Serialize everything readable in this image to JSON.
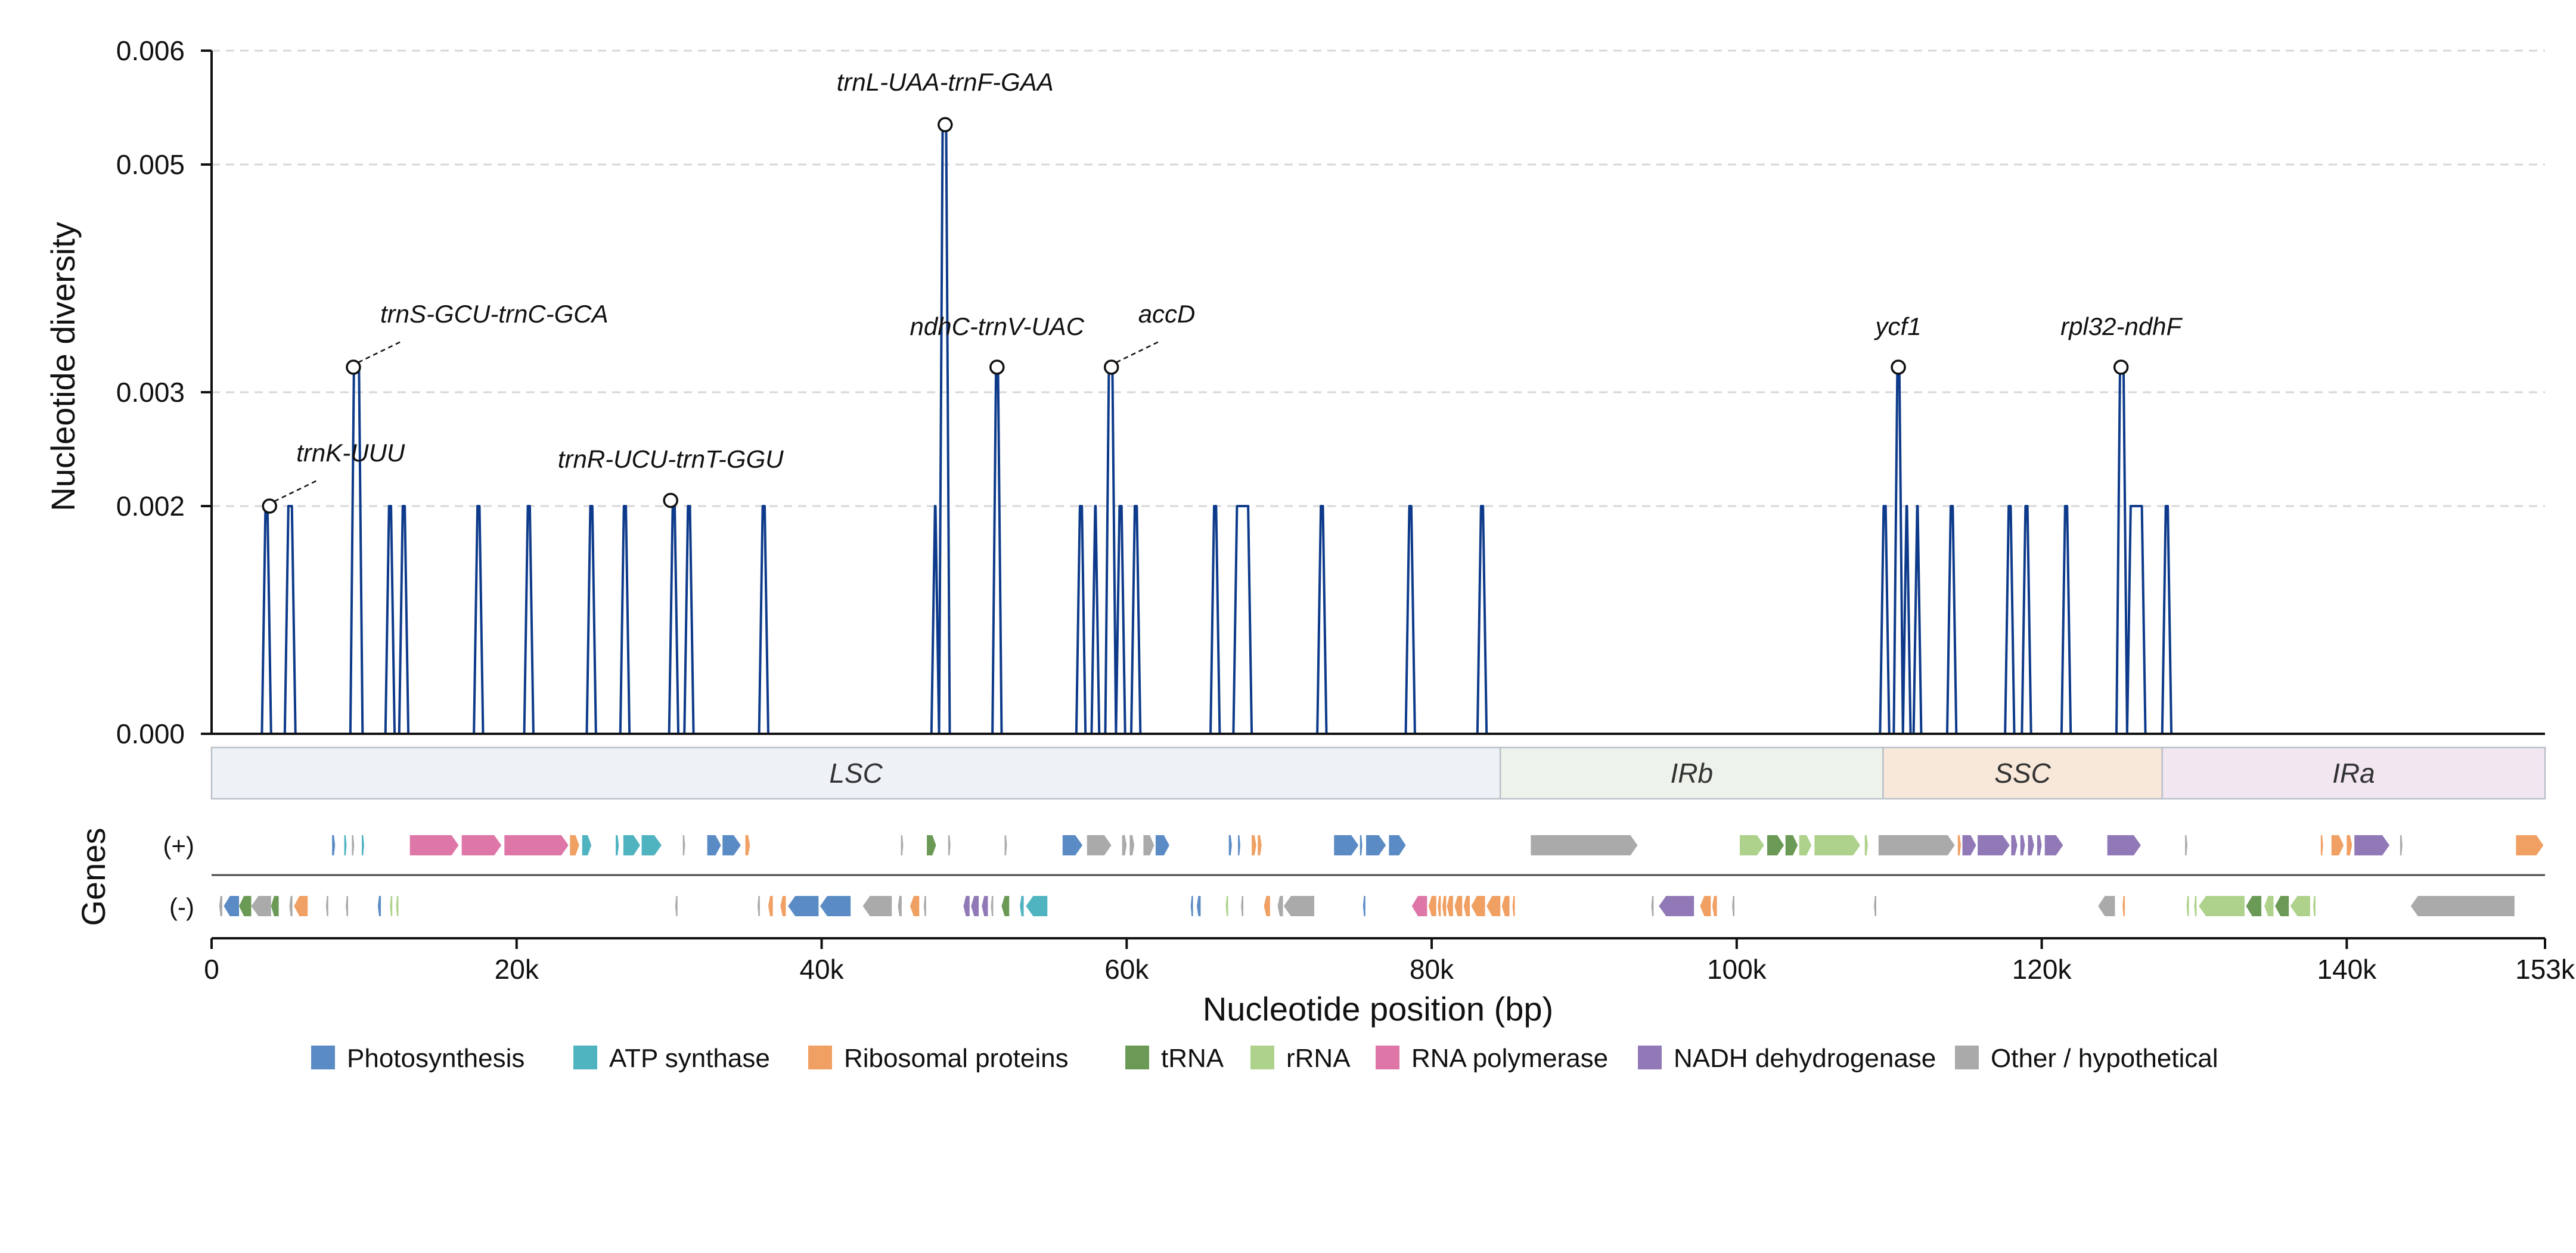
{
  "chart_data": {
    "type": "line",
    "ylabel": "Nucleotide diversity",
    "xlabel": "Nucleotide position (bp)",
    "ylim": [
      0,
      0.006
    ],
    "xlim": [
      0,
      153000
    ],
    "y_ticks": [
      0.0,
      0.002,
      0.003,
      0.005,
      0.006
    ],
    "y_tick_labels": [
      "0.000",
      "0.002",
      "0.003",
      "0.005",
      "0.006"
    ],
    "x_ticks": [
      0,
      20000,
      40000,
      60000,
      80000,
      100000,
      120000,
      140000,
      153000
    ],
    "x_tick_labels": [
      "0",
      "20k",
      "40k",
      "60k",
      "80k",
      "100k",
      "120k",
      "140k",
      "153k"
    ],
    "grid": "horizontal dashed",
    "line_color": "#0d3a8a",
    "pi_levels": [
      0,
      0.002,
      0.003,
      0.0053
    ],
    "peak_windows": [
      [
        3300,
        3900,
        0.002
      ],
      [
        4800,
        5500,
        0.002
      ],
      [
        9100,
        9900,
        0.00322
      ],
      [
        11400,
        12000,
        0.002
      ],
      [
        12300,
        12900,
        0.002
      ],
      [
        17200,
        17800,
        0.002
      ],
      [
        20500,
        21100,
        0.002
      ],
      [
        24600,
        25200,
        0.002
      ],
      [
        26800,
        27400,
        0.002
      ],
      [
        30000,
        30600,
        0.002
      ],
      [
        31000,
        31600,
        0.002
      ],
      [
        35900,
        36500,
        0.002
      ],
      [
        47200,
        47700,
        0.002
      ],
      [
        47700,
        48400,
        0.00535
      ],
      [
        51200,
        51800,
        0.00322
      ],
      [
        56700,
        57300,
        0.002
      ],
      [
        57700,
        58200,
        0.002
      ],
      [
        58600,
        59300,
        0.00322
      ],
      [
        59300,
        59900,
        0.002
      ],
      [
        60300,
        60900,
        0.002
      ],
      [
        65500,
        66100,
        0.002
      ],
      [
        67000,
        68200,
        0.002
      ],
      [
        72500,
        73100,
        0.002
      ],
      [
        78300,
        78900,
        0.002
      ],
      [
        83000,
        83600,
        0.002
      ],
      [
        109400,
        110000,
        0.002
      ],
      [
        110300,
        110900,
        0.00322
      ],
      [
        110900,
        111400,
        0.002
      ],
      [
        111600,
        112100,
        0.002
      ],
      [
        113800,
        114400,
        0.002
      ],
      [
        117600,
        118200,
        0.002
      ],
      [
        118700,
        119300,
        0.002
      ],
      [
        121300,
        121900,
        0.002
      ],
      [
        124900,
        125600,
        0.00322
      ],
      [
        125600,
        126800,
        0.002
      ],
      [
        127900,
        128500,
        0.002
      ]
    ],
    "annotations": [
      {
        "label": "trnK-UUU",
        "x": 3800,
        "y": 0.002
      },
      {
        "label": "trnS-GCU-trnC-GCA",
        "x": 9300,
        "y": 0.00322
      },
      {
        "label": "trnR-UCU-trnT-GGU",
        "x": 30100,
        "y": 0.00205
      },
      {
        "label": "trnL-UAA-trnF-GAA",
        "x": 48100,
        "y": 0.00535
      },
      {
        "label": "ndhC-trnV-UAC",
        "x": 51500,
        "y": 0.00322
      },
      {
        "label": "accD",
        "x": 59000,
        "y": 0.00322
      },
      {
        "label": "ycf1",
        "x": 110600,
        "y": 0.00322
      },
      {
        "label": "rpl32-ndhF",
        "x": 125200,
        "y": 0.00322
      }
    ],
    "regions": [
      {
        "label": "LSC",
        "start": 0,
        "end": 84500,
        "color": "#eef2f6"
      },
      {
        "label": "IRb",
        "start": 84500,
        "end": 109600,
        "color": "#edf3eb"
      },
      {
        "label": "SSC",
        "start": 109600,
        "end": 127900,
        "color": "#f8e8da"
      },
      {
        "label": "IRa",
        "start": 127900,
        "end": 153000,
        "color": "#f2e6f1"
      }
    ],
    "genes_ylabel": "Genes",
    "strand_labels": [
      "(+)",
      "(-)"
    ],
    "categories": {
      "P": {
        "name": "Photosynthesis",
        "color": "#5b8bc4"
      },
      "A": {
        "name": "ATP synthase",
        "color": "#4fb3c0"
      },
      "R": {
        "name": "Ribosomal proteins",
        "color": "#f0a063"
      },
      "T": {
        "name": "tRNA",
        "color": "#6a9a55"
      },
      "r": {
        "name": "rRNA",
        "color": "#aed28b"
      },
      "N": {
        "name": "RNA polymerase",
        "color": "#de77a8"
      },
      "D": {
        "name": "NADH dehydrogenase",
        "color": "#9079b6"
      },
      "O": {
        "name": "Other / hypothetical",
        "color": "#aaaaaa"
      }
    },
    "legend_order": [
      "P",
      "A",
      "R",
      "T",
      "r",
      "N",
      "D",
      "O"
    ],
    "genes_plus": [
      [
        7900,
        8100,
        "P"
      ],
      [
        8700,
        8850,
        "A"
      ],
      [
        9200,
        9350,
        "O"
      ],
      [
        9850,
        10000,
        "A"
      ],
      [
        13000,
        16200,
        "N"
      ],
      [
        16400,
        19000,
        "N"
      ],
      [
        19200,
        23400,
        "N"
      ],
      [
        23500,
        24100,
        "R"
      ],
      [
        24300,
        24900,
        "A"
      ],
      [
        26500,
        26700,
        "A"
      ],
      [
        27000,
        28100,
        "A"
      ],
      [
        28200,
        29500,
        "A"
      ],
      [
        30900,
        31050,
        "O"
      ],
      [
        32500,
        33400,
        "P"
      ],
      [
        33500,
        34700,
        "P"
      ],
      [
        35000,
        35300,
        "R"
      ],
      [
        45200,
        45350,
        "O"
      ],
      [
        46900,
        47500,
        "T"
      ],
      [
        48300,
        48450,
        "O"
      ],
      [
        52000,
        52150,
        "O"
      ],
      [
        55800,
        57100,
        "P"
      ],
      [
        57400,
        59000,
        "O"
      ],
      [
        59700,
        60000,
        "O"
      ],
      [
        60200,
        60500,
        "O"
      ],
      [
        61100,
        61800,
        "O"
      ],
      [
        61900,
        62800,
        "P"
      ],
      [
        66700,
        66900,
        "P"
      ],
      [
        67300,
        67450,
        "P"
      ],
      [
        68200,
        68500,
        "R"
      ],
      [
        68600,
        68850,
        "R"
      ],
      [
        73600,
        75200,
        "P"
      ],
      [
        75300,
        75450,
        "P"
      ],
      [
        75700,
        77000,
        "P"
      ],
      [
        77200,
        78300,
        "P"
      ],
      [
        86500,
        93500,
        "O"
      ],
      [
        100200,
        101800,
        "r"
      ],
      [
        102000,
        103100,
        "T"
      ],
      [
        103200,
        104000,
        "T"
      ],
      [
        104100,
        104900,
        "r"
      ],
      [
        105100,
        108100,
        "r"
      ],
      [
        108400,
        108600,
        "r"
      ],
      [
        109300,
        114300,
        "O"
      ],
      [
        114500,
        114700,
        "R"
      ],
      [
        114800,
        115700,
        "D"
      ],
      [
        115800,
        117900,
        "D"
      ],
      [
        118000,
        118400,
        "D"
      ],
      [
        118600,
        118900,
        "D"
      ],
      [
        119100,
        119500,
        "D"
      ],
      [
        119700,
        120000,
        "D"
      ],
      [
        120200,
        121400,
        "D"
      ],
      [
        124300,
        126500,
        "D"
      ],
      [
        129400,
        129550,
        "O"
      ],
      [
        138300,
        138450,
        "R"
      ],
      [
        139000,
        139800,
        "R"
      ],
      [
        140000,
        140350,
        "R"
      ],
      [
        140500,
        142800,
        "D"
      ],
      [
        143500,
        143650,
        "O"
      ],
      [
        151100,
        152900,
        "R"
      ]
    ],
    "genes_minus": [
      [
        500,
        700,
        "O"
      ],
      [
        800,
        1800,
        "P"
      ],
      [
        1800,
        2600,
        "T"
      ],
      [
        2600,
        3900,
        "O"
      ],
      [
        3900,
        4400,
        "T"
      ],
      [
        5100,
        5300,
        "O"
      ],
      [
        5400,
        6300,
        "R"
      ],
      [
        7500,
        7650,
        "O"
      ],
      [
        8800,
        8950,
        "O"
      ],
      [
        10900,
        11100,
        "P"
      ],
      [
        11700,
        11850,
        "r"
      ],
      [
        12100,
        12250,
        "r"
      ],
      [
        30400,
        30550,
        "O"
      ],
      [
        35800,
        35950,
        "O"
      ],
      [
        36500,
        36800,
        "R"
      ],
      [
        37300,
        37650,
        "R"
      ],
      [
        37800,
        39800,
        "P"
      ],
      [
        39900,
        41900,
        "P"
      ],
      [
        42700,
        44600,
        "O"
      ],
      [
        45000,
        45250,
        "O"
      ],
      [
        45800,
        46400,
        "R"
      ],
      [
        46700,
        46850,
        "O"
      ],
      [
        49300,
        49700,
        "D"
      ],
      [
        49800,
        50300,
        "D"
      ],
      [
        50500,
        50900,
        "D"
      ],
      [
        51100,
        51250,
        "O"
      ],
      [
        51800,
        52300,
        "T"
      ],
      [
        53000,
        53250,
        "A"
      ],
      [
        53400,
        54800,
        "A"
      ],
      [
        64200,
        64350,
        "P"
      ],
      [
        64600,
        64850,
        "P"
      ],
      [
        66500,
        66650,
        "r"
      ],
      [
        67500,
        67650,
        "O"
      ],
      [
        69000,
        69400,
        "R"
      ],
      [
        69900,
        70250,
        "O"
      ],
      [
        70300,
        72300,
        "O"
      ],
      [
        75500,
        75650,
        "P"
      ],
      [
        78700,
        79700,
        "N"
      ],
      [
        79800,
        80300,
        "R"
      ],
      [
        80400,
        80600,
        "R"
      ],
      [
        80700,
        80950,
        "R"
      ],
      [
        81000,
        81400,
        "R"
      ],
      [
        81500,
        82000,
        "R"
      ],
      [
        82100,
        82500,
        "R"
      ],
      [
        82600,
        83500,
        "R"
      ],
      [
        83600,
        84500,
        "R"
      ],
      [
        84600,
        85100,
        "R"
      ],
      [
        85300,
        85450,
        "R"
      ],
      [
        94400,
        94550,
        "O"
      ],
      [
        94900,
        97200,
        "D"
      ],
      [
        97600,
        98300,
        "R"
      ],
      [
        98400,
        98700,
        "R"
      ],
      [
        99700,
        99850,
        "O"
      ],
      [
        109000,
        109150,
        "O"
      ],
      [
        123700,
        124800,
        "O"
      ],
      [
        125300,
        125450,
        "R"
      ],
      [
        129500,
        129650,
        "r"
      ],
      [
        130000,
        130150,
        "r"
      ],
      [
        130300,
        133300,
        "r"
      ],
      [
        133400,
        134400,
        "T"
      ],
      [
        134600,
        135200,
        "r"
      ],
      [
        135300,
        136200,
        "T"
      ],
      [
        136300,
        137600,
        "r"
      ],
      [
        137800,
        137950,
        "r"
      ],
      [
        144200,
        151000,
        "O"
      ]
    ]
  }
}
